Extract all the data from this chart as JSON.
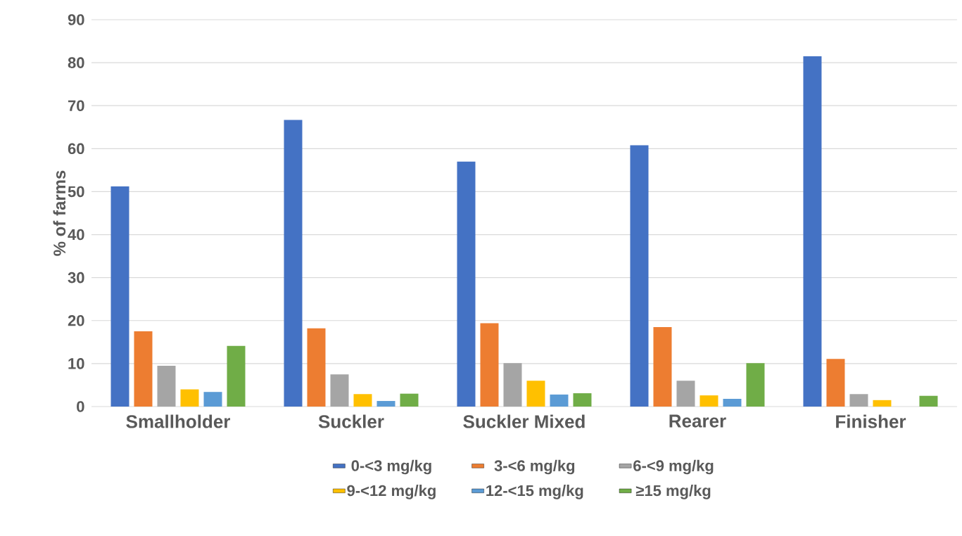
{
  "chart_data": {
    "type": "bar",
    "ylabel": "% of farms",
    "categories": [
      "Smallholder",
      "Suckler",
      "Suckler Mixed",
      "Rearer",
      "Finisher"
    ],
    "series": [
      {
        "name": "0-<3 mg/kg",
        "color": "#4472c4",
        "values": [
          51.2,
          66.7,
          57.0,
          60.8,
          81.5
        ]
      },
      {
        "name": "3-<6 mg/kg",
        "color": "#ed7d31",
        "values": [
          17.5,
          18.2,
          19.4,
          18.5,
          11.1
        ]
      },
      {
        "name": "6-<9 mg/kg",
        "color": "#a5a5a5",
        "values": [
          9.5,
          7.5,
          10.1,
          6.0,
          2.9
        ]
      },
      {
        "name": "9-<12 mg/kg",
        "color": "#ffc000",
        "values": [
          4.0,
          2.9,
          6.0,
          2.6,
          1.5
        ]
      },
      {
        "name": "12-<15 mg/kg",
        "color": "#5b9bd5",
        "values": [
          3.4,
          1.3,
          2.8,
          1.8,
          0
        ]
      },
      {
        "name": "≥15 mg/kg",
        "color": "#70ad47",
        "values": [
          14.1,
          3.0,
          3.1,
          10.1,
          2.5
        ]
      }
    ],
    "ylim": [
      0,
      90
    ],
    "yticks": [
      0,
      10,
      20,
      30,
      40,
      50,
      60,
      70,
      80,
      90
    ],
    "grid": "y",
    "legend": "bottom"
  }
}
